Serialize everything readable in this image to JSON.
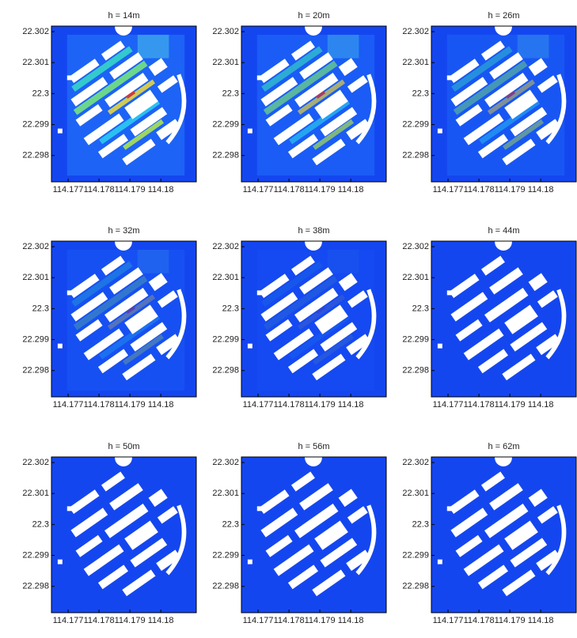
{
  "chart_data": [
    {
      "type": "heatmap",
      "title": "h = 14m",
      "xlim": [
        114.17646,
        114.18115
      ],
      "ylim": [
        22.29715,
        22.30218
      ],
      "xticks": [
        114.177,
        114.178,
        114.179,
        114.18
      ],
      "yticks": [
        22.298,
        22.299,
        22.3,
        22.301,
        22.302
      ]
    },
    {
      "type": "heatmap",
      "title": "h = 20m",
      "xlim": [
        114.17646,
        114.18115
      ],
      "ylim": [
        22.29715,
        22.30218
      ],
      "xticks": [
        114.177,
        114.178,
        114.179,
        114.18
      ],
      "yticks": [
        22.298,
        22.299,
        22.3,
        22.301,
        22.302
      ]
    },
    {
      "type": "heatmap",
      "title": "h = 26m",
      "xlim": [
        114.17646,
        114.18115
      ],
      "ylim": [
        22.29715,
        22.30218
      ],
      "xticks": [
        114.177,
        114.178,
        114.179,
        114.18
      ],
      "yticks": [
        22.298,
        22.299,
        22.3,
        22.301,
        22.302
      ]
    },
    {
      "type": "heatmap",
      "title": "h = 32m",
      "xlim": [
        114.17646,
        114.18115
      ],
      "ylim": [
        22.29715,
        22.30218
      ],
      "xticks": [
        114.177,
        114.178,
        114.179,
        114.18
      ],
      "yticks": [
        22.298,
        22.299,
        22.3,
        22.301,
        22.302
      ]
    },
    {
      "type": "heatmap",
      "title": "h = 38m",
      "xlim": [
        114.17646,
        114.18115
      ],
      "ylim": [
        22.29715,
        22.30218
      ],
      "xticks": [
        114.177,
        114.178,
        114.179,
        114.18
      ],
      "yticks": [
        22.298,
        22.299,
        22.3,
        22.301,
        22.302
      ]
    },
    {
      "type": "heatmap",
      "title": "h = 44m",
      "xlim": [
        114.17646,
        114.18115
      ],
      "ylim": [
        22.29715,
        22.30218
      ],
      "xticks": [
        114.177,
        114.178,
        114.179,
        114.18
      ],
      "yticks": [
        22.298,
        22.299,
        22.3,
        22.301,
        22.302
      ]
    },
    {
      "type": "heatmap",
      "title": "h = 50m",
      "xlim": [
        114.17646,
        114.18115
      ],
      "ylim": [
        22.29715,
        22.30218
      ],
      "xticks": [
        114.177,
        114.178,
        114.179,
        114.18
      ],
      "yticks": [
        22.298,
        22.299,
        22.3,
        22.301,
        22.302
      ]
    },
    {
      "type": "heatmap",
      "title": "h = 56m",
      "xlim": [
        114.17646,
        114.18115
      ],
      "ylim": [
        22.29715,
        22.30218
      ],
      "xticks": [
        114.177,
        114.178,
        114.179,
        114.18
      ],
      "yticks": [
        22.298,
        22.299,
        22.3,
        22.301,
        22.302
      ]
    },
    {
      "type": "heatmap",
      "title": "h = 62m",
      "xlim": [
        114.17646,
        114.18115
      ],
      "ylim": [
        22.29715,
        22.30218
      ],
      "xticks": [
        114.177,
        114.178,
        114.179,
        114.18
      ],
      "yticks": [
        22.298,
        22.299,
        22.3,
        22.301,
        22.302
      ]
    }
  ]
}
